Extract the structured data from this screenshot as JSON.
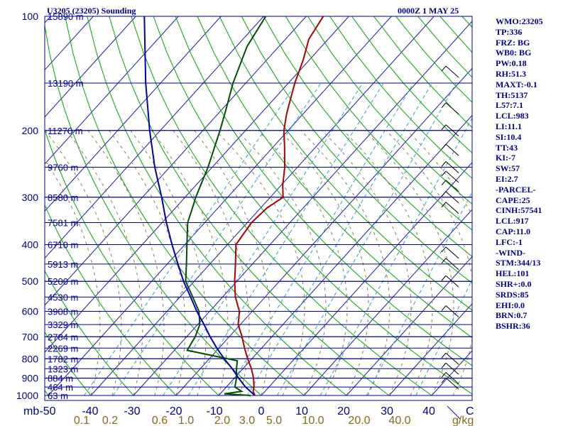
{
  "header": {
    "title": "U3205 (23205) Sounding",
    "datetime": "0000Z  1 MAY 25"
  },
  "indices": [
    "WMO:23205",
    "TP:336",
    "FRZ: BG",
    "WB0: BG",
    "PW:0.18",
    "RH:51.3",
    "MAXT:-0.1",
    "TH:5137",
    "L57:7.1",
    "LCL:983",
    "LI:11.1",
    "SI:10.4",
    "TT:43",
    "KI:-7",
    "SW:57",
    "EI:2.7",
    "-PARCEL-",
    "CAPE:25",
    "CINH:57541",
    "LCL:917",
    "CAP:11.0",
    "LFC:-1",
    "-WIND-",
    "STM:344/13",
    "HEL:101",
    "SHR+:0.0",
    "SRDS:85",
    "EHI:0.0",
    "BRN:0.7",
    "BSHR:36"
  ],
  "colors": {
    "border": "#00008b",
    "isobar": "#00008b",
    "isotherm": "#1a1ab0",
    "dry_adiabat": "#00aa00",
    "moist_adiabat": "#8b7d5a",
    "mixing_ratio": "#2aa0d8",
    "temperature": "#b00000",
    "dewpoint": "#005000",
    "parcel": "#0000b0",
    "wind_barb": "#000000"
  },
  "chart_data": {
    "type": "line",
    "diagram": "skew-T log-P",
    "pressure_unit": "mb",
    "temperature_unit": "C",
    "mixing_ratio_unit": "g/kg",
    "y_range_mb": [
      1000,
      100
    ],
    "x_range_c_at_1000mb": [
      -50,
      50
    ],
    "pressure_ticks": [
      100,
      200,
      300,
      400,
      500,
      600,
      700,
      800,
      900,
      1000
    ],
    "temperature_ticks": [
      -50,
      -40,
      -30,
      -20,
      -10,
      0,
      10,
      20,
      30,
      40
    ],
    "mixing_ratio_ticks": [
      {
        "label": "0.1",
        "value": 0.1
      },
      {
        "label": "0.2",
        "value": 0.2
      },
      {
        "label": "0.6",
        "value": 0.6
      },
      {
        "label": "1.0",
        "value": 1.0
      },
      {
        "label": "2.0",
        "value": 2.0
      },
      {
        "label": "3.0",
        "value": 3.0
      },
      {
        "label": "5.0",
        "value": 5.0
      },
      {
        "label": "10.0",
        "value": 10.0
      },
      {
        "label": "20.0",
        "value": 20.0
      },
      {
        "label": "40.0",
        "value": 40.0
      }
    ],
    "axis_labels": {
      "pressure": "mb",
      "temperature": "C",
      "mixing_ratio": "g/kg"
    },
    "height_levels": [
      {
        "p": 1000,
        "label": "63 m"
      },
      {
        "p": 950,
        "label": "464 m"
      },
      {
        "p": 900,
        "label": "884 m"
      },
      {
        "p": 850,
        "label": "1323 m"
      },
      {
        "p": 800,
        "label": "1782 m"
      },
      {
        "p": 750,
        "label": "2269 m"
      },
      {
        "p": 700,
        "label": "2784 m"
      },
      {
        "p": 650,
        "label": "3329 m"
      },
      {
        "p": 600,
        "label": "3908 m"
      },
      {
        "p": 550,
        "label": "4530 m"
      },
      {
        "p": 500,
        "label": "5200 m"
      },
      {
        "p": 450,
        "label": "5913 m"
      },
      {
        "p": 400,
        "label": "6710 m"
      },
      {
        "p": 350,
        "label": "7581 m"
      },
      {
        "p": 300,
        "label": "8580 m"
      },
      {
        "p": 250,
        "label": "9760 m"
      },
      {
        "p": 200,
        "label": "11270 m"
      },
      {
        "p": 150,
        "label": "13190 m"
      },
      {
        "p": 100,
        "label": "15890 m"
      }
    ],
    "series": [
      {
        "key": "temperature",
        "points": [
          {
            "p": 1000,
            "t": -1.5
          },
          {
            "p": 975,
            "t": -2.8
          },
          {
            "p": 950,
            "t": -3.5
          },
          {
            "p": 925,
            "t": -4.5
          },
          {
            "p": 900,
            "t": -5.5
          },
          {
            "p": 850,
            "t": -8.0
          },
          {
            "p": 800,
            "t": -11.0
          },
          {
            "p": 750,
            "t": -14.0
          },
          {
            "p": 700,
            "t": -17.0
          },
          {
            "p": 650,
            "t": -20.5
          },
          {
            "p": 600,
            "t": -23.0
          },
          {
            "p": 550,
            "t": -27.0
          },
          {
            "p": 500,
            "t": -30.5
          },
          {
            "p": 450,
            "t": -34.0
          },
          {
            "p": 400,
            "t": -38.0
          },
          {
            "p": 350,
            "t": -39.0
          },
          {
            "p": 320,
            "t": -38.5
          },
          {
            "p": 300,
            "t": -37.0
          },
          {
            "p": 280,
            "t": -39.5
          },
          {
            "p": 250,
            "t": -43.0
          },
          {
            "p": 220,
            "t": -47.5
          },
          {
            "p": 200,
            "t": -51.0
          },
          {
            "p": 180,
            "t": -54.0
          },
          {
            "p": 150,
            "t": -58.5
          },
          {
            "p": 130,
            "t": -61.5
          },
          {
            "p": 115,
            "t": -64.5
          },
          {
            "p": 100,
            "t": -66.0
          }
        ]
      },
      {
        "key": "dewpoint",
        "points": [
          {
            "p": 1000,
            "t": -2.5
          },
          {
            "p": 990,
            "t": -9.0
          },
          {
            "p": 975,
            "t": -5.5
          },
          {
            "p": 950,
            "t": -8.0
          },
          {
            "p": 900,
            "t": -9.5
          },
          {
            "p": 850,
            "t": -11.5
          },
          {
            "p": 810,
            "t": -13.0
          },
          {
            "p": 760,
            "t": -27.0
          },
          {
            "p": 700,
            "t": -28.0
          },
          {
            "p": 650,
            "t": -29.5
          },
          {
            "p": 600,
            "t": -32.5
          },
          {
            "p": 550,
            "t": -37.0
          },
          {
            "p": 500,
            "t": -42.0
          },
          {
            "p": 450,
            "t": -45.5
          },
          {
            "p": 400,
            "t": -49.5
          },
          {
            "p": 350,
            "t": -54.0
          },
          {
            "p": 320,
            "t": -56.0
          },
          {
            "p": 300,
            "t": -57.5
          },
          {
            "p": 250,
            "t": -61.0
          },
          {
            "p": 200,
            "t": -66.0
          },
          {
            "p": 180,
            "t": -68.5
          },
          {
            "p": 150,
            "t": -73.0
          },
          {
            "p": 120,
            "t": -77.5
          },
          {
            "p": 100,
            "t": -79.5
          }
        ]
      },
      {
        "key": "parcel",
        "points": [
          {
            "p": 1000,
            "t": -1.5
          },
          {
            "p": 950,
            "t": -5.5
          },
          {
            "p": 900,
            "t": -9.0
          },
          {
            "p": 850,
            "t": -12.5
          },
          {
            "p": 800,
            "t": -16.5
          },
          {
            "p": 750,
            "t": -20.5
          },
          {
            "p": 700,
            "t": -24.5
          },
          {
            "p": 650,
            "t": -28.5
          },
          {
            "p": 600,
            "t": -33.0
          },
          {
            "p": 550,
            "t": -37.5
          },
          {
            "p": 500,
            "t": -42.5
          },
          {
            "p": 450,
            "t": -47.5
          },
          {
            "p": 400,
            "t": -53.0
          },
          {
            "p": 350,
            "t": -59.0
          },
          {
            "p": 300,
            "t": -65.5
          },
          {
            "p": 250,
            "t": -73.5
          },
          {
            "p": 200,
            "t": -82.5
          },
          {
            "p": 150,
            "t": -93.5
          },
          {
            "p": 100,
            "t": -108.0
          }
        ]
      }
    ],
    "wind_barb_pressures": [
      140,
      175,
      200,
      225,
      250,
      265,
      280,
      300,
      320,
      420,
      450,
      500,
      600,
      800,
      850,
      900,
      930
    ],
    "grid": true
  }
}
